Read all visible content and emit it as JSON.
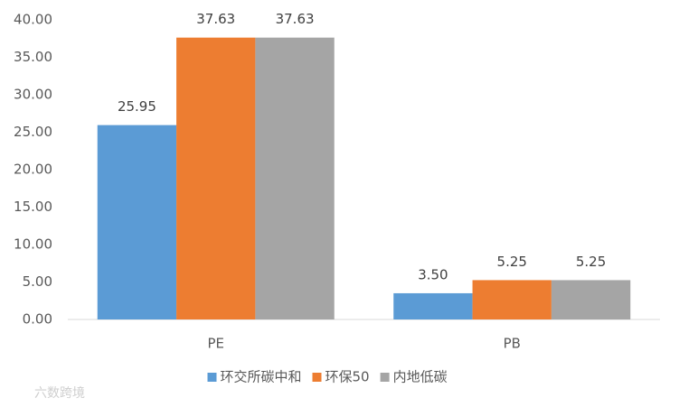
{
  "chart_data": {
    "type": "bar",
    "categories": [
      "PE",
      "PB"
    ],
    "series": [
      {
        "name": "环交所碳中和",
        "color": "#5b9bd5",
        "values": [
          25.95,
          3.5
        ],
        "value_labels": [
          "25.95",
          "3.50"
        ]
      },
      {
        "name": "环保50",
        "color": "#ed7d31",
        "values": [
          37.63,
          5.25
        ],
        "value_labels": [
          "37.63",
          "5.25"
        ]
      },
      {
        "name": "内地低碳",
        "color": "#a5a5a5",
        "values": [
          37.63,
          5.25
        ],
        "value_labels": [
          "37.63",
          "5.25"
        ]
      }
    ],
    "ylim": [
      0,
      40
    ],
    "yticks": [
      {
        "value": 0,
        "label": "0.00"
      },
      {
        "value": 5,
        "label": "5.00"
      },
      {
        "value": 10,
        "label": "10.00"
      },
      {
        "value": 15,
        "label": "15.00"
      },
      {
        "value": 20,
        "label": "20.00"
      },
      {
        "value": 25,
        "label": "25.00"
      },
      {
        "value": 30,
        "label": "30.00"
      },
      {
        "value": 35,
        "label": "35.00"
      },
      {
        "value": 40,
        "label": "40.00"
      }
    ],
    "grid": false,
    "legend": "bottom",
    "watermark": "六数跨境"
  }
}
